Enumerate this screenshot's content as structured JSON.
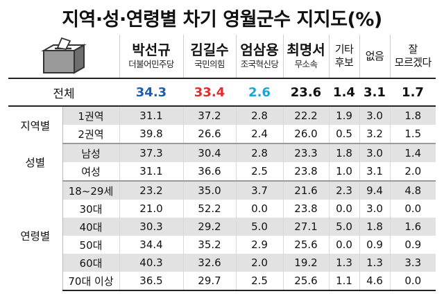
{
  "title": "지역·성·연령별 차기 영월군수 지지도(%)",
  "chart_data": {
    "type": "table",
    "title": "지역·성·연령별 차기 영월군수 지지도(%)",
    "columns": [
      {
        "name": "박선규",
        "party": "더불어민주당",
        "color": "#1a5eb3"
      },
      {
        "name": "김길수",
        "party": "국민의힘",
        "color": "#e22b2b"
      },
      {
        "name": "엄삼용",
        "party": "조국혁신당",
        "color": "#16a6d9"
      },
      {
        "name": "최명서",
        "party": "무소속",
        "color": "#111111"
      },
      {
        "name": "기타\n후보",
        "party": "",
        "color": "#111111"
      },
      {
        "name": "없음",
        "party": "",
        "color": "#111111"
      },
      {
        "name": "잘\n모르겠다",
        "party": "",
        "color": "#111111"
      }
    ],
    "total": {
      "label": "전체",
      "values": [
        "34.3",
        "33.4",
        "2.6",
        "23.6",
        "1.4",
        "3.1",
        "1.7"
      ]
    },
    "groups": [
      {
        "label": "지역별",
        "rows": [
          {
            "label": "1권역",
            "values": [
              "31.1",
              "37.2",
              "2.8",
              "22.2",
              "1.9",
              "3.0",
              "1.8"
            ]
          },
          {
            "label": "2권역",
            "values": [
              "39.8",
              "26.6",
              "2.4",
              "26.0",
              "0.5",
              "3.2",
              "1.5"
            ]
          }
        ]
      },
      {
        "label": "성별",
        "rows": [
          {
            "label": "남성",
            "values": [
              "37.3",
              "30.4",
              "2.8",
              "23.3",
              "1.8",
              "3.0",
              "1.4"
            ]
          },
          {
            "label": "여성",
            "values": [
              "31.1",
              "36.6",
              "2.5",
              "23.8",
              "1.0",
              "3.1",
              "2.0"
            ]
          }
        ]
      },
      {
        "label": "연령별",
        "rows": [
          {
            "label": "18~29세",
            "values": [
              "23.2",
              "35.0",
              "3.7",
              "21.6",
              "2.3",
              "9.4",
              "4.8"
            ]
          },
          {
            "label": "30대",
            "values": [
              "21.0",
              "52.2",
              "0.0",
              "23.8",
              "0.0",
              "3.0",
              "0.0"
            ]
          },
          {
            "label": "40대",
            "values": [
              "30.3",
              "29.2",
              "5.0",
              "27.1",
              "5.0",
              "1.8",
              "1.6"
            ]
          },
          {
            "label": "50대",
            "values": [
              "34.4",
              "35.2",
              "2.9",
              "25.6",
              "0.0",
              "0.9",
              "0.9"
            ]
          },
          {
            "label": "60대",
            "values": [
              "40.3",
              "32.6",
              "2.0",
              "19.2",
              "1.3",
              "1.3",
              "3.3"
            ]
          },
          {
            "label": "70대 이상",
            "values": [
              "36.5",
              "29.7",
              "2.5",
              "25.6",
              "1.1",
              "4.6",
              "0.0"
            ]
          }
        ]
      }
    ]
  }
}
